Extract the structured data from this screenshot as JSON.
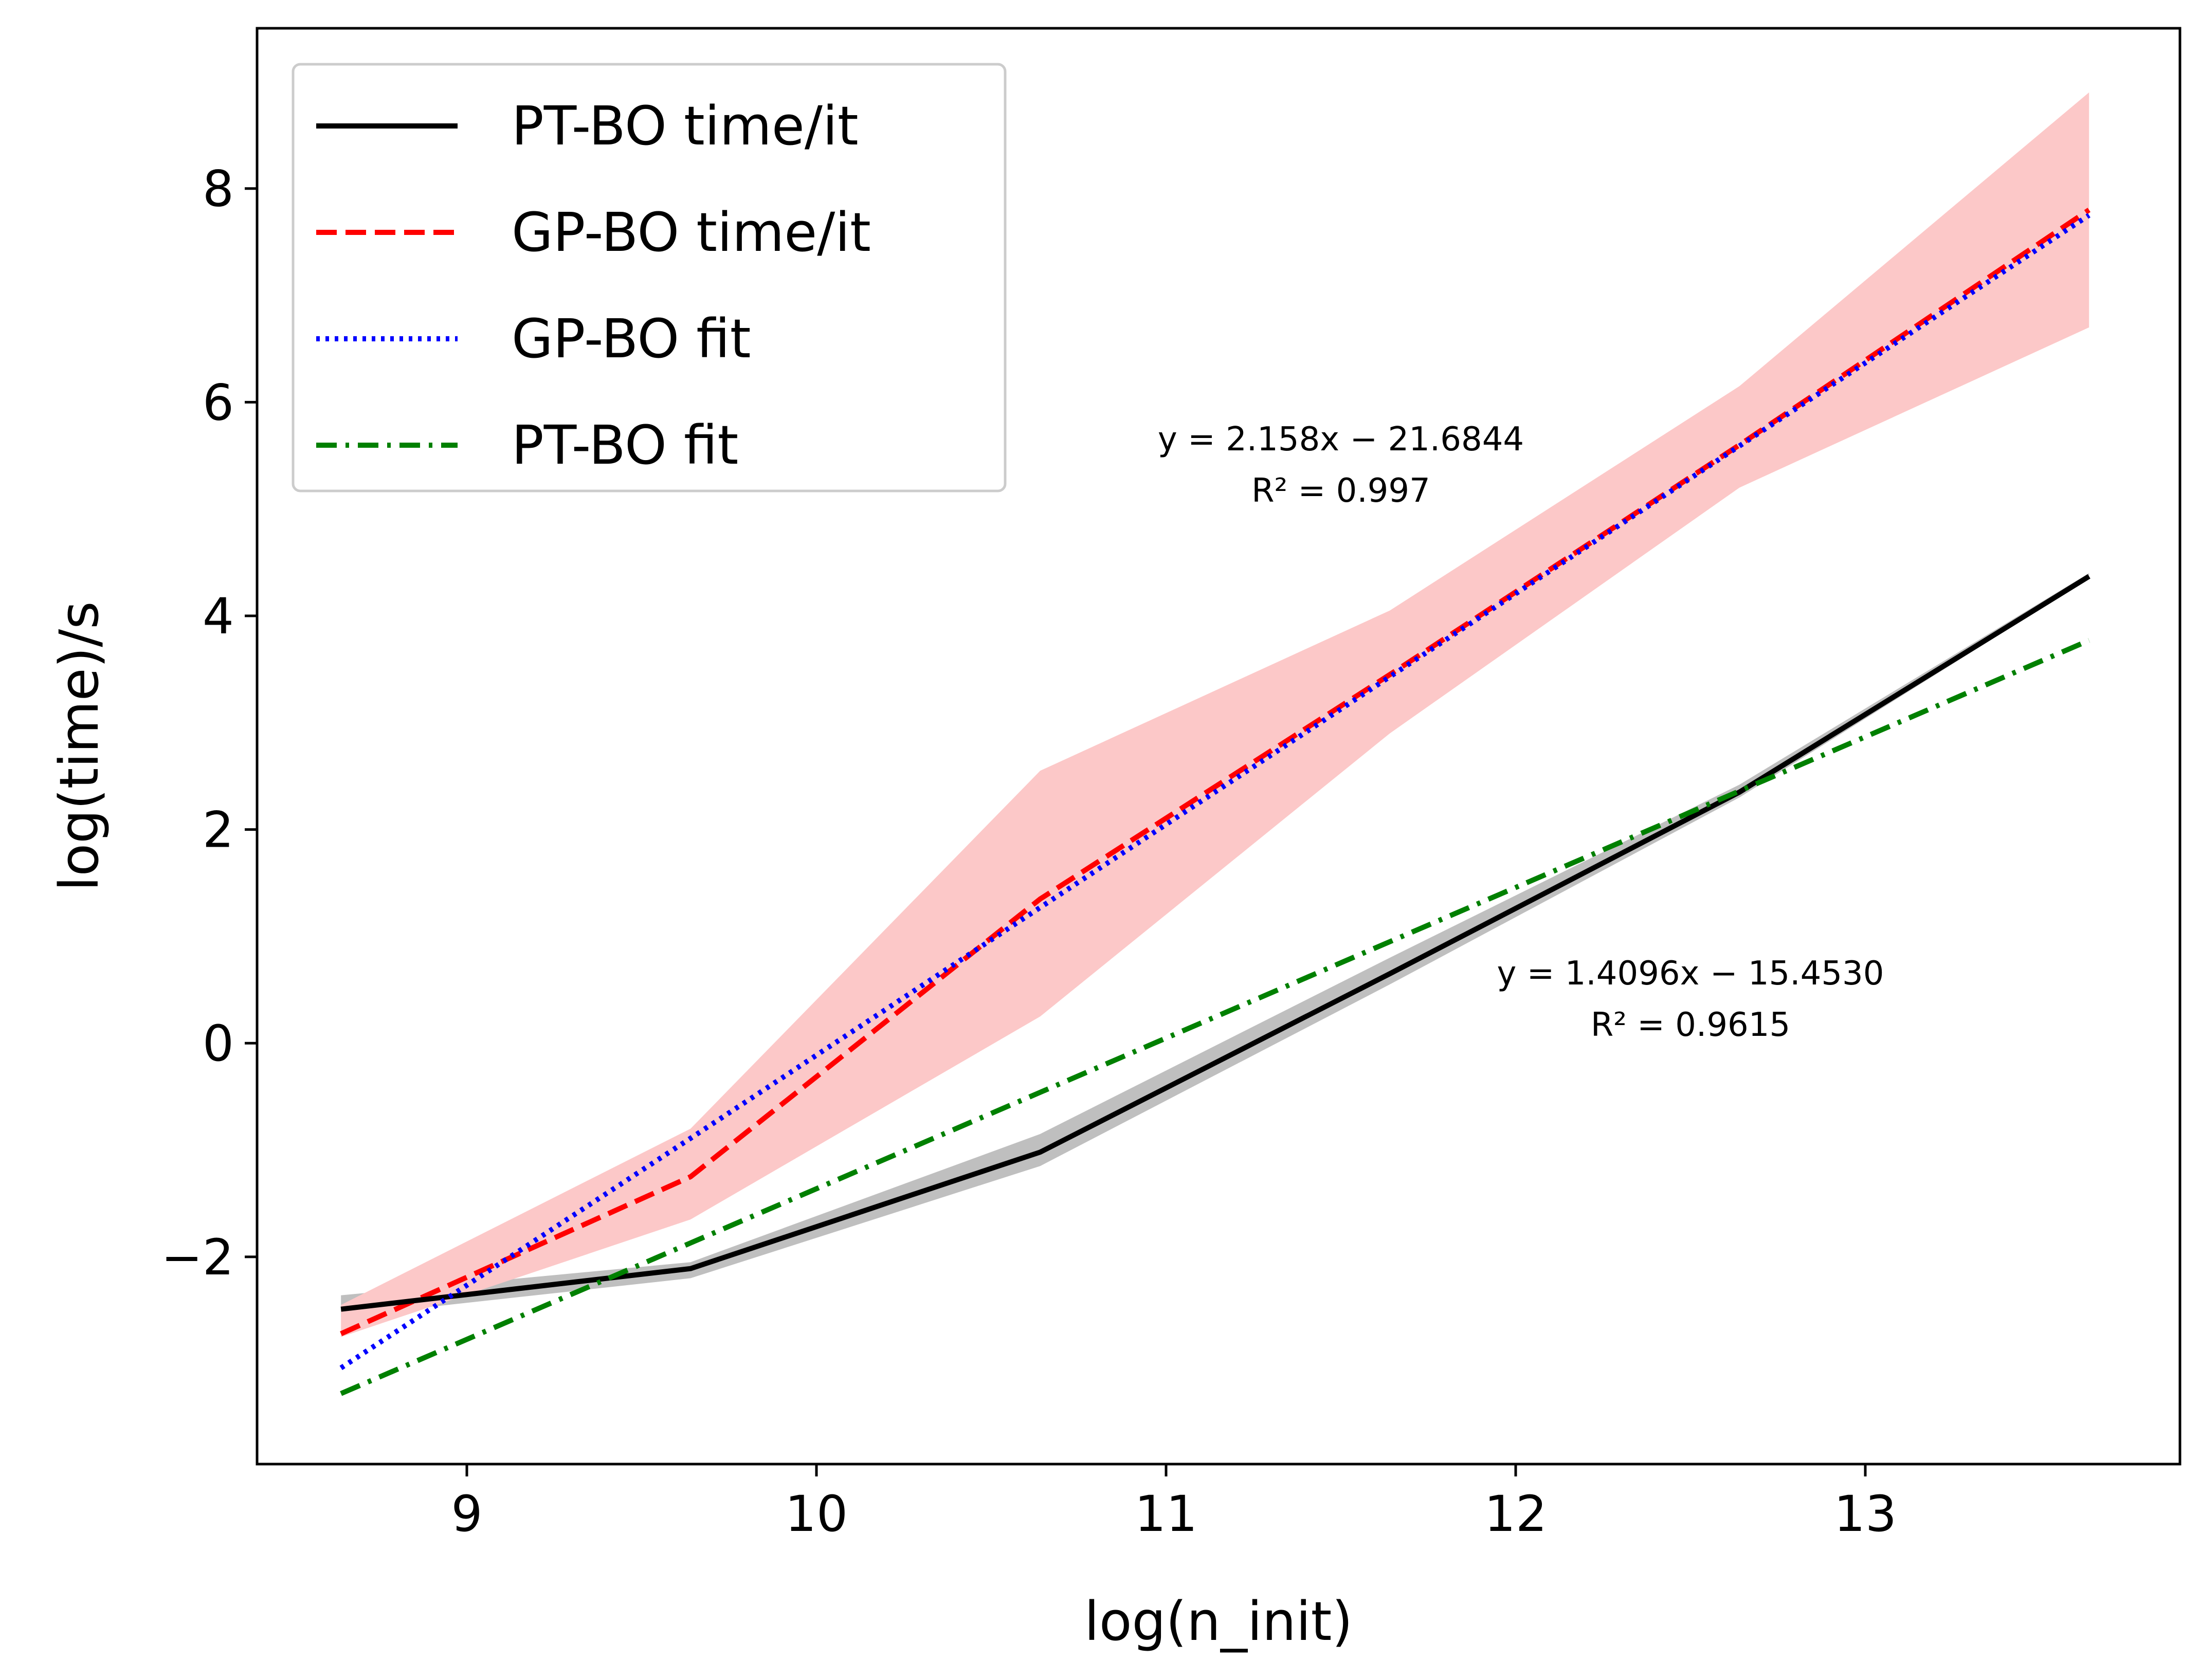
{
  "chart_data": {
    "type": "line",
    "xlabel": "log(n_init)",
    "ylabel": "log(time)/s",
    "xlim": [
      8.4,
      13.9
    ],
    "ylim": [
      -3.94,
      9.5
    ],
    "xticks": [
      9,
      10,
      11,
      12,
      13
    ],
    "xtick_labels": [
      "9",
      "10",
      "11",
      "12",
      "13"
    ],
    "yticks": [
      -2,
      0,
      2,
      4,
      6,
      8
    ],
    "ytick_labels": [
      "−2",
      "0",
      "2",
      "4",
      "6",
      "8"
    ],
    "x": [
      8.64,
      9.64,
      10.64,
      11.64,
      12.64,
      13.64
    ],
    "series": [
      {
        "name": "PT-BO time/it",
        "color": "#000000",
        "dash": "solid",
        "values": [
          -2.49,
          -2.11,
          -1.02,
          0.65,
          2.35,
          4.37
        ],
        "band": {
          "lower": [
            -2.56,
            -2.2,
            -1.15,
            0.55,
            2.3,
            4.35
          ],
          "upper": [
            -2.36,
            -2.05,
            -0.85,
            0.8,
            2.42,
            4.4
          ],
          "color": "#bfbfbf"
        }
      },
      {
        "name": "GP-BO time/it",
        "color": "#ff0000",
        "dash": "dashed",
        "values": [
          -2.72,
          -1.25,
          1.35,
          3.45,
          5.6,
          7.8
        ],
        "band": {
          "lower": [
            -2.75,
            -1.65,
            0.25,
            2.9,
            5.2,
            6.7
          ],
          "upper": [
            -2.45,
            -0.8,
            2.55,
            4.05,
            6.15,
            8.9
          ],
          "color": "#fcc8c8"
        }
      },
      {
        "name": "GP-BO fit",
        "color": "#0000ff",
        "dash": "dotted",
        "slope": 2.158,
        "intercept": -21.6844,
        "values": [
          -3.04,
          -0.89,
          1.27,
          3.43,
          5.59,
          7.75
        ]
      },
      {
        "name": "PT-BO fit",
        "color": "#008000",
        "dash": "dashdot",
        "slope": 1.4096,
        "intercept": -15.453,
        "values": [
          -3.28,
          -1.87,
          -0.46,
          0.95,
          2.36,
          3.77
        ]
      }
    ],
    "annotations": [
      {
        "line1": "y = 2.158x − 21.6844",
        "line2": "R² = 0.997",
        "anchor_x": 11.5,
        "anchor_y": 5.55
      },
      {
        "line1": "y = 1.4096x − 15.4530",
        "line2": "R² = 0.9615",
        "anchor_x": 12.5,
        "anchor_y": 0.55
      }
    ],
    "legend": {
      "position": "top-left",
      "entries": [
        "PT-BO time/it",
        "GP-BO time/it",
        "GP-BO fit",
        "PT-BO fit"
      ]
    },
    "grid": false
  }
}
